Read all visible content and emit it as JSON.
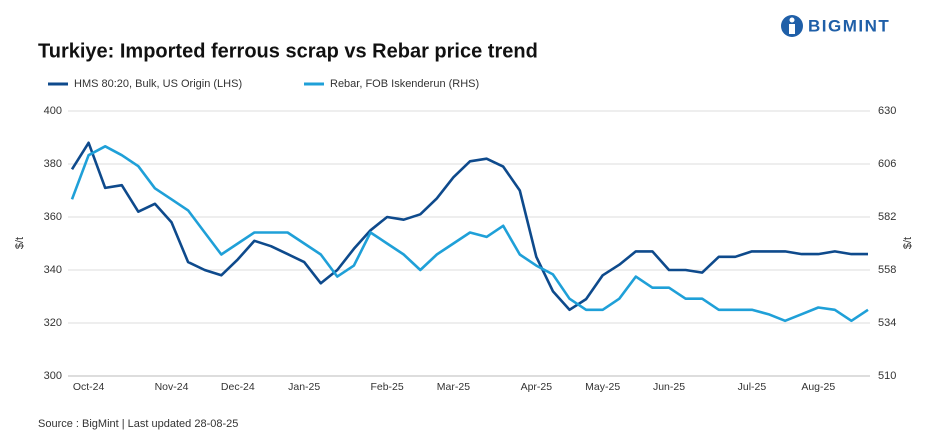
{
  "logo": "BIGMINT",
  "source": "Source : BigMint | Last updated 28-08-25",
  "chart_data": {
    "type": "line",
    "title": "Turkiye: Imported ferrous scrap vs Rebar price trend",
    "ylabel": "$/t",
    "y2label": "$/t",
    "categories": [
      null,
      "Oct-24",
      null,
      null,
      null,
      null,
      "Nov-24",
      null,
      null,
      null,
      "Dec-24",
      null,
      null,
      null,
      "Jan-25",
      null,
      null,
      null,
      null,
      "Feb-25",
      null,
      null,
      null,
      "Mar-25",
      null,
      null,
      null,
      null,
      "Apr-25",
      null,
      null,
      null,
      "May-25",
      null,
      null,
      null,
      "Jun-25",
      null,
      null,
      null,
      null,
      "Jul-25",
      null,
      null,
      null,
      "Aug-25",
      null,
      null,
      null
    ],
    "series": [
      {
        "name": "HMS 80:20, Bulk, US Origin (LHS)",
        "color": "#0e4a8c",
        "values": [
          378,
          388,
          371,
          372,
          362,
          365,
          358,
          343,
          340,
          338,
          344,
          351,
          349,
          346,
          343,
          335,
          340,
          348,
          355,
          360,
          359,
          361,
          367,
          375,
          381,
          382,
          379,
          370,
          345,
          332,
          325,
          329,
          338,
          342,
          347,
          347,
          340,
          340,
          339,
          345,
          345,
          347,
          347,
          347,
          346,
          346,
          347,
          346,
          346
        ]
      },
      {
        "name": "Rebar, FOB Iskenderun (RHS)",
        "color": "#1fa0d8",
        "axis": "y2",
        "values": [
          590,
          610,
          614,
          610,
          605,
          595,
          590,
          585,
          575,
          565,
          570,
          575,
          575,
          575,
          570,
          565,
          555,
          560,
          575,
          570,
          565,
          558,
          565,
          570,
          575,
          573,
          578,
          565,
          560,
          556,
          545,
          540,
          540,
          545,
          555,
          550,
          550,
          545,
          545,
          540,
          540,
          540,
          538,
          535,
          538,
          541,
          540,
          535,
          540
        ]
      }
    ],
    "ylim": [
      300,
      400
    ],
    "yticks": [
      300,
      320,
      340,
      360,
      380,
      400
    ],
    "y2lim": [
      510,
      630
    ],
    "y2ticks": [
      510,
      534,
      558,
      582,
      606,
      630
    ],
    "grid": true
  }
}
